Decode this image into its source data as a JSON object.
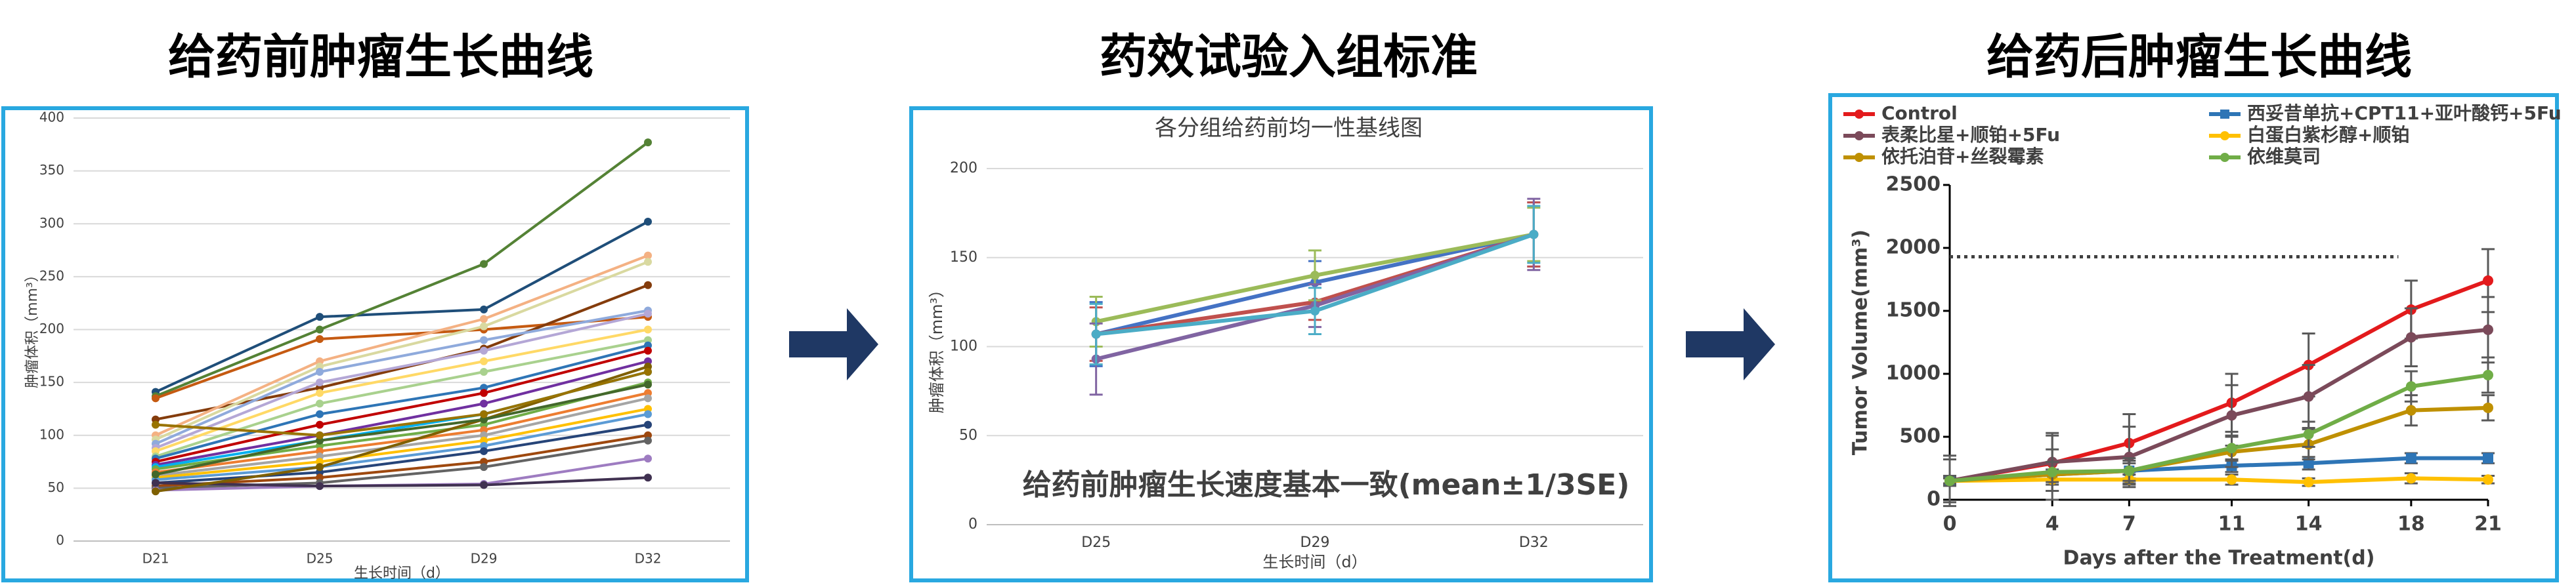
{
  "chart_data": [
    {
      "type": "line",
      "heading": "给药前肿瘤生长曲线",
      "x_label": "生长时间（d）",
      "y_label": "肿瘤体积（mm³）",
      "categories": [
        "D21",
        "D25",
        "D29",
        "D32"
      ],
      "ylim": [
        0,
        400
      ],
      "yticks": [
        0,
        50,
        100,
        150,
        200,
        250,
        300,
        350,
        400
      ],
      "grid": true,
      "marker": "circle",
      "series": [
        {
          "color": "#1f4e79",
          "values": [
            141,
            212,
            219,
            302
          ]
        },
        {
          "color": "#548235",
          "values": [
            137,
            200,
            262,
            377
          ]
        },
        {
          "color": "#c55a11",
          "values": [
            135,
            191,
            200,
            212
          ]
        },
        {
          "color": "#843c0c",
          "values": [
            115,
            145,
            182,
            242
          ]
        },
        {
          "color": "#f4b183",
          "values": [
            100,
            170,
            210,
            270
          ]
        },
        {
          "color": "#d9d9a0",
          "values": [
            96,
            165,
            203,
            264
          ]
        },
        {
          "color": "#8faadc",
          "values": [
            92,
            160,
            190,
            218
          ]
        },
        {
          "color": "#b4a7d6",
          "values": [
            88,
            150,
            180,
            215
          ]
        },
        {
          "color": "#ffd966",
          "values": [
            85,
            140,
            170,
            200
          ]
        },
        {
          "color": "#a9d18e",
          "values": [
            80,
            130,
            160,
            190
          ]
        },
        {
          "color": "#2e75b6",
          "values": [
            78,
            120,
            145,
            185
          ]
        },
        {
          "color": "#c00000",
          "values": [
            75,
            110,
            140,
            180
          ]
        },
        {
          "color": "#7030a0",
          "values": [
            72,
            100,
            130,
            170
          ]
        },
        {
          "color": "#00b0f0",
          "values": [
            70,
            95,
            120,
            160
          ]
        },
        {
          "color": "#70ad47",
          "values": [
            68,
            90,
            110,
            150
          ]
        },
        {
          "color": "#ed7d31",
          "values": [
            65,
            85,
            105,
            140
          ]
        },
        {
          "color": "#a5a5a5",
          "values": [
            62,
            80,
            100,
            135
          ]
        },
        {
          "color": "#ffc000",
          "values": [
            60,
            75,
            95,
            125
          ]
        },
        {
          "color": "#5b9bd5",
          "values": [
            58,
            70,
            90,
            120
          ]
        },
        {
          "color": "#264478",
          "values": [
            55,
            65,
            85,
            110
          ]
        },
        {
          "color": "#9e480e",
          "values": [
            52,
            60,
            75,
            100
          ]
        },
        {
          "color": "#636363",
          "values": [
            50,
            55,
            70,
            95
          ]
        },
        {
          "color": "#9e7cc1",
          "values": [
            48,
            52,
            54,
            78
          ]
        },
        {
          "color": "#403151",
          "values": [
            55,
            52,
            53,
            60
          ]
        },
        {
          "color": "#7f6000",
          "values": [
            47,
            70,
            115,
            165
          ]
        },
        {
          "color": "#43682b",
          "values": [
            63,
            95,
            115,
            148
          ]
        },
        {
          "color": "#997300",
          "values": [
            110,
            100,
            120,
            160
          ]
        }
      ]
    },
    {
      "type": "line",
      "heading": "药效试验入组标准",
      "title": "各分组给药前均一性基线图",
      "x_label": "生长时间（d）",
      "y_label": "肿瘤体积（mm³）",
      "annotation": "给药前肿瘤生长速度基本一致(mean±1/3SE)",
      "categories": [
        "D25",
        "D29",
        "D32"
      ],
      "ylim": [
        0,
        200
      ],
      "yticks": [
        0,
        50,
        100,
        150,
        200
      ],
      "grid": true,
      "marker": "circle",
      "series": [
        {
          "color": "#4472c4",
          "values": [
            107,
            136,
            163
          ],
          "errors": [
            18,
            12,
            18
          ]
        },
        {
          "color": "#c0504d",
          "values": [
            107,
            125,
            163
          ],
          "errors": [
            15,
            10,
            18
          ]
        },
        {
          "color": "#9bbb59",
          "values": [
            114,
            140,
            163
          ],
          "errors": [
            14,
            14,
            15
          ]
        },
        {
          "color": "#8064a2",
          "values": [
            93,
            123,
            163
          ],
          "errors": [
            20,
            12,
            20
          ]
        },
        {
          "color": "#4bacc6",
          "values": [
            107,
            120,
            163
          ],
          "errors": [
            17,
            13,
            16
          ]
        }
      ]
    },
    {
      "type": "line",
      "heading": "给药后肿瘤生长曲线",
      "x_label": "Days after the Treatment(d)",
      "y_label": "Tumor Volume(mm³)",
      "x": [
        0,
        4,
        7,
        11,
        14,
        18,
        21
      ],
      "xlim": [
        0,
        21
      ],
      "xticks": [
        0,
        4,
        7,
        11,
        14,
        18,
        21
      ],
      "ylim": [
        0,
        2500
      ],
      "yticks": [
        0,
        500,
        1000,
        1500,
        2000,
        2500
      ],
      "grid": false,
      "legend": "top",
      "marker": "circle",
      "error_color": "#595959",
      "reference_line": {
        "value": 1930,
        "x": [
          0,
          17.5
        ]
      },
      "series": [
        {
          "name": "Control",
          "color": "#e31a1c",
          "values": [
            150,
            290,
            450,
            770,
            1070,
            1510,
            1740
          ],
          "errors": [
            30,
            220,
            230,
            230,
            250,
            230,
            250
          ]
        },
        {
          "name": "西妥昔单抗+CPT11+亚叶酸钙+5Fu",
          "color": "#2e75b6",
          "marker": "square",
          "values": [
            150,
            200,
            230,
            270,
            290,
            330,
            330
          ],
          "errors": [
            20,
            40,
            60,
            50,
            50,
            40,
            40
          ]
        },
        {
          "name": "表柔比星+顺铂+5Fu",
          "color": "#7b4a5a",
          "values": [
            150,
            300,
            340,
            670,
            820,
            1290,
            1350
          ],
          "errors": [
            200,
            230,
            240,
            240,
            250,
            230,
            260
          ]
        },
        {
          "name": "白蛋白紫杉醇+顺铂",
          "color": "#ffc000",
          "values": [
            150,
            160,
            160,
            160,
            140,
            170,
            160
          ],
          "errors": [
            20,
            40,
            40,
            40,
            30,
            40,
            30
          ]
        },
        {
          "name": "依托泊苷+丝裂霉素",
          "color": "#bf9000",
          "values": [
            150,
            200,
            230,
            380,
            440,
            710,
            730
          ],
          "errors": [
            170,
            200,
            100,
            120,
            120,
            120,
            100
          ]
        },
        {
          "name": "依维莫司",
          "color": "#70ad47",
          "values": [
            150,
            220,
            230,
            410,
            520,
            900,
            990
          ],
          "errors": [
            40,
            80,
            80,
            100,
            100,
            120,
            140
          ]
        }
      ]
    }
  ]
}
